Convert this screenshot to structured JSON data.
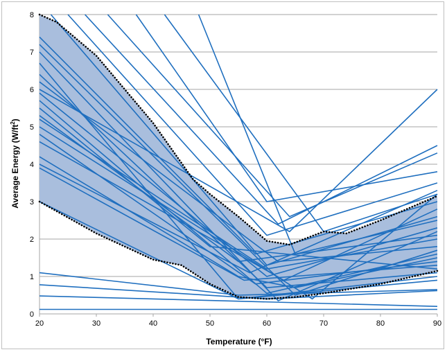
{
  "chart_data": {
    "type": "line",
    "title": "",
    "xlabel": "Temperature (°F)",
    "ylabel_main": "Average Energy (W/ft",
    "ylabel_sup": "2",
    "ylabel_end": ")",
    "xlim": [
      20,
      90
    ],
    "ylim": [
      0,
      8
    ],
    "x_ticks": [
      20,
      30,
      40,
      50,
      60,
      70,
      80,
      90
    ],
    "y_ticks": [
      0,
      1,
      2,
      3,
      4,
      5,
      6,
      7,
      8
    ],
    "grid": "horizontal",
    "legend": "none",
    "colors": {
      "series": "#1f6fbf",
      "band_fill": "#a9bedd",
      "bound": "#000000",
      "grid": "#a6a6a6"
    },
    "band": {
      "upper": [
        [
          20,
          8.0
        ],
        [
          23,
          7.8
        ],
        [
          30,
          6.9
        ],
        [
          40,
          5.1
        ],
        [
          47,
          3.6
        ],
        [
          50,
          3.2
        ],
        [
          55,
          2.6
        ],
        [
          60,
          1.95
        ],
        [
          64,
          1.85
        ],
        [
          70,
          2.2
        ],
        [
          74,
          2.15
        ],
        [
          80,
          2.5
        ],
        [
          90,
          3.15
        ]
      ],
      "lower": [
        [
          20,
          3.0
        ],
        [
          30,
          2.15
        ],
        [
          40,
          1.45
        ],
        [
          45,
          1.3
        ],
        [
          50,
          0.8
        ],
        [
          55,
          0.45
        ],
        [
          60,
          0.4
        ],
        [
          65,
          0.45
        ],
        [
          70,
          0.55
        ],
        [
          80,
          0.8
        ],
        [
          90,
          1.15
        ]
      ]
    },
    "series": [
      {
        "x": [
          20,
          90
        ],
        "y": [
          0.12,
          0.12
        ]
      },
      {
        "x": [
          20,
          90
        ],
        "y": [
          0.48,
          0.2
        ]
      },
      {
        "x": [
          20,
          60,
          90
        ],
        "y": [
          0.78,
          0.4,
          0.62
        ]
      },
      {
        "x": [
          20,
          55,
          90
        ],
        "y": [
          1.1,
          0.5,
          0.65
        ]
      },
      {
        "x": [
          20,
          55,
          90
        ],
        "y": [
          3.0,
          0.4,
          1.0
        ]
      },
      {
        "x": [
          20,
          55,
          65,
          90
        ],
        "y": [
          4.2,
          1.0,
          0.7,
          1.5
        ]
      },
      {
        "x": [
          20,
          58,
          90
        ],
        "y": [
          4.8,
          0.8,
          1.4
        ]
      },
      {
        "x": [
          20,
          60,
          90
        ],
        "y": [
          5.2,
          1.2,
          2.0
        ]
      },
      {
        "x": [
          20,
          50,
          90
        ],
        "y": [
          5.5,
          1.8,
          1.2
        ]
      },
      {
        "x": [
          20,
          60,
          90
        ],
        "y": [
          5.9,
          1.0,
          2.3
        ]
      },
      {
        "x": [
          20,
          62,
          90
        ],
        "y": [
          6.2,
          1.4,
          1.8
        ]
      },
      {
        "x": [
          20,
          55,
          90
        ],
        "y": [
          6.7,
          0.4,
          0.9
        ]
      },
      {
        "x": [
          20,
          65,
          90
        ],
        "y": [
          7.2,
          0.5,
          1.7
        ]
      },
      {
        "x": [
          20,
          58,
          90
        ],
        "y": [
          7.4,
          1.6,
          3.0
        ]
      },
      {
        "x": [
          22,
          60,
          90
        ],
        "y": [
          8.0,
          1.3,
          2.6
        ]
      },
      {
        "x": [
          20,
          57,
          90
        ],
        "y": [
          4.0,
          1.1,
          3.3
        ]
      },
      {
        "x": [
          20,
          63,
          90
        ],
        "y": [
          4.6,
          0.9,
          2.8
        ]
      },
      {
        "x": [
          20,
          60,
          90
        ],
        "y": [
          5.7,
          0.55,
          1.6
        ]
      },
      {
        "x": [
          25,
          60,
          90
        ],
        "y": [
          8.0,
          2.1,
          3.5
        ]
      },
      {
        "x": [
          28,
          62,
          90
        ],
        "y": [
          8.0,
          2.4,
          4.5
        ]
      },
      {
        "x": [
          32,
          64,
          90
        ],
        "y": [
          8.0,
          2.6,
          4.3
        ]
      },
      {
        "x": [
          37,
          60,
          90
        ],
        "y": [
          8.0,
          3.0,
          3.8
        ]
      },
      {
        "x": [
          42,
          70,
          90
        ],
        "y": [
          8.0,
          2.2,
          3.2
        ]
      },
      {
        "x": [
          48,
          65,
          90
        ],
        "y": [
          8.0,
          1.6,
          2.5
        ]
      },
      {
        "x": [
          20,
          64,
          90
        ],
        "y": [
          6.0,
          2.2,
          6.0
        ]
      },
      {
        "x": [
          20,
          68,
          90
        ],
        "y": [
          5.0,
          0.4,
          3.2
        ]
      },
      {
        "x": [
          20,
          62,
          90
        ],
        "y": [
          7.0,
          0.35,
          2.2
        ]
      },
      {
        "x": [
          20,
          56,
          90
        ],
        "y": [
          3.9,
          0.9,
          1.3
        ]
      },
      {
        "x": [
          20,
          60,
          90
        ],
        "y": [
          6.4,
          0.7,
          1.1
        ]
      },
      {
        "x": [
          20,
          55,
          90
        ],
        "y": [
          5.3,
          1.4,
          2.1
        ]
      }
    ]
  }
}
